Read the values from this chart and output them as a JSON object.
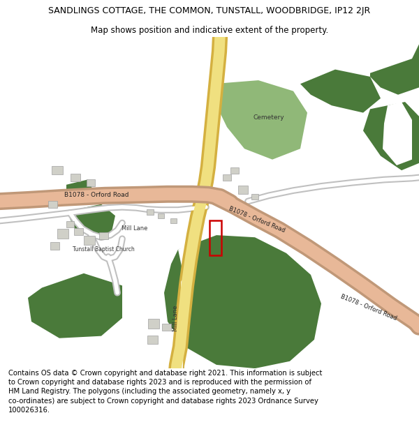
{
  "title_line1": "SANDLINGS COTTAGE, THE COMMON, TUNSTALL, WOODBRIDGE, IP12 2JR",
  "title_line2": "Map shows position and indicative extent of the property.",
  "footer": "Contains OS data © Crown copyright and database right 2021. This information is subject to Crown copyright and database rights 2023 and is reproduced with the permission of HM Land Registry. The polygons (including the associated geometry, namely x, y co-ordinates) are subject to Crown copyright and database rights 2023 Ordnance Survey 100026316.",
  "bg_color": "#ffffff",
  "green_dark": "#4a7a3a",
  "green_light": "#90b878",
  "road_yellow_edge": "#d4b040",
  "road_yellow_fill": "#f0e080",
  "road_salmon_edge": "#c09878",
  "road_salmon_fill": "#e8b898",
  "road_minor_edge": "#c0c0c0",
  "road_minor_fill": "#ffffff",
  "building_fill": "#d0d0c8",
  "building_edge": "#a0a0a0",
  "property_color": "#cc0000",
  "title_fontsize": 9,
  "subtitle_fontsize": 8.5,
  "footer_fontsize": 7.2,
  "label_fontsize": 6.5,
  "label_small_fontsize": 6.0
}
